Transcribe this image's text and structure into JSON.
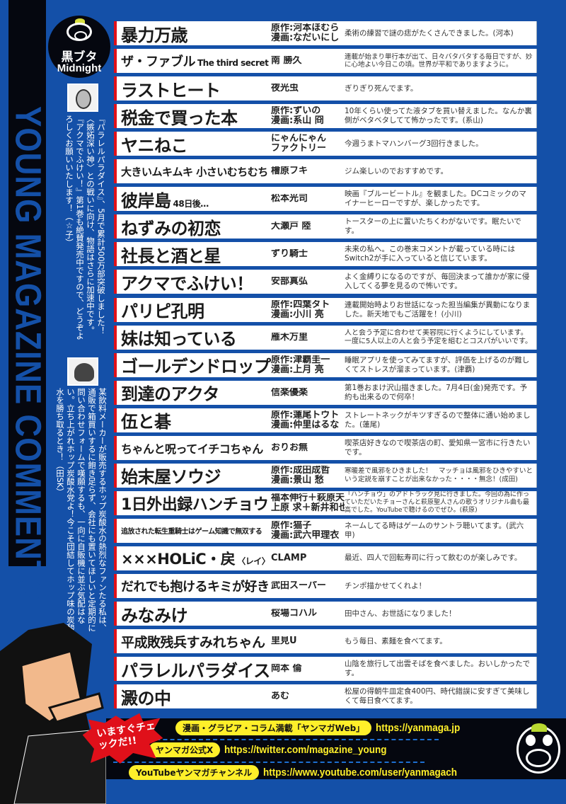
{
  "section_title": "YOUNG MAGAZINE COMMENTS",
  "logo": {
    "line1": "黒ブタ",
    "line2": "Midnight"
  },
  "editor_comments": [
    {
      "text": "『パラレルパラダイス』、5月で累計500万部突破しました！〈嫉妬深い神〉との戦いに向け、物語はさらに加速中です。『アクマでふけい！』第1巻も絶賛発売中ですので、どうぞよろしくお願いいたします！（☆子）"
    },
    {
      "text": "某飲料メーカーが販売するホップ炭酸水の熱烈なファンたる私は、通販で箱買いするに飽き足らず、会社にも置いてほしいと定期的に問い合わせフォームで嘆願するも、一向に自販機に並ぶ気配はない。立ち上がれホップ炭酸水党よ！今こそ団結してホップ味の炭酸水を勝ち取るとき！（田SK）"
    }
  ],
  "rows": [
    {
      "title": "暴力万歳",
      "sub": "",
      "author": [
        "原作:河本ほむら",
        "漫画:なだいにし"
      ],
      "comment": "柔術の練習で謎の痣がたくさんできました。(河本)"
    },
    {
      "title": "ザ・ファブル",
      "sub": "The third secret",
      "author": [
        "南 勝久"
      ],
      "comment": "連載が始まり単行本が出て、日々バタバタする毎日ですが、妙に心地よい今日この頃。世界が平和でありますように。"
    },
    {
      "title": "ラストヒート",
      "sub": "",
      "author": [
        "夜光虫"
      ],
      "comment": "ぎりぎり死んでます。"
    },
    {
      "title": "税金で買った本",
      "sub": "",
      "author": [
        "原作:ずいの",
        "漫画:系山 冏"
      ],
      "comment": "10年くらい使ってた液タブを買い替えました。なんか裏側がベタベタしてて怖かったです。(系山)"
    },
    {
      "title": "ヤニねこ",
      "sub": "",
      "author": [
        "にゃんにゃん",
        "ファクトリー"
      ],
      "comment": "今週うまトマハンバーグ3回行きました。"
    },
    {
      "title": "大きいムキムキ 小さいむちむち",
      "sub": "",
      "author": [
        "檜原フキ"
      ],
      "comment": "ジム楽しいのでおすすめです。"
    },
    {
      "title": "彼岸島",
      "sub": "48日後…",
      "author": [
        "松本光司"
      ],
      "comment": "映画『ブルービートル』を観ました。DCコミックのマイナーヒーローですが、楽しかったです。"
    },
    {
      "title": "ねずみの初恋",
      "sub": "",
      "author": [
        "大瀬戸 陸"
      ],
      "comment": "トースターの上に置いたちくわがないです。眠たいです。"
    },
    {
      "title": "社長と酒と星",
      "sub": "",
      "author": [
        "ずり騎士"
      ],
      "comment": "未来の私へ。この巻末コメントが載っている時にはSwitch2が手に入っていると信じています。"
    },
    {
      "title": "アクマでふけい！",
      "sub": "",
      "author": [
        "安部真弘"
      ],
      "comment": "よく金縛りになるのですが、毎回決まって誰かが家に侵入してくる夢を見るので怖いです。"
    },
    {
      "title": "パリピ孔明",
      "sub": "",
      "author": [
        "原作:四葉タト",
        "漫画:小川 亮"
      ],
      "comment": "連載開始時よりお世話になった担当編集が異動になりました。新天地でもご活躍を！(小川)"
    },
    {
      "title": "妹は知っている",
      "sub": "",
      "author": [
        "雁木万里"
      ],
      "comment": "人と会う予定に合わせて美容院に行くようにしています。一度に5人以上の人と会う予定を組むとコスパがいいです。"
    },
    {
      "title": "ゴールデンドロップ",
      "sub": "",
      "author": [
        "原作:津覇圭一",
        "漫画:上月 亮"
      ],
      "comment": "睡眠アプリを使ってみてますが、評価を上げるのが難しくてストレスが溜まっています。(津覇)"
    },
    {
      "title": "到達のアクタ",
      "sub": "",
      "author": [
        "信楽優楽"
      ],
      "comment": "第1巻おまけ沢山描きました。7月4日(金)発売です。予約も出来るので何卒！"
    },
    {
      "title": "伍と碁",
      "sub": "",
      "author": [
        "原作:蓮尾トウト",
        "漫画:仲里はるな"
      ],
      "comment": "ストレートネックがキツすぎるので整体に通い始めました。(蓮尾)"
    },
    {
      "title": "ちゃんと呪ってイチコちゃん",
      "sub": "",
      "author": [
        "おりお無"
      ],
      "comment": "喫茶店好きなので喫茶店の町、愛知県一宮市に行きたいです。"
    },
    {
      "title": "始末屋ソウジ",
      "sub": "",
      "author": [
        "原作:成田成哲",
        "漫画:景山 愁"
      ],
      "comment": "寒暖差で風邪をひきました！　マッチョは風邪をひきやすいという定説を崩すことが出来なかった・・・・無念！(成田)"
    },
    {
      "title": "1日外出録ハンチョウ",
      "sub": "",
      "author": [
        "福本伸行＋萩原天晴＋",
        "上原 求＋新井和也"
      ],
      "comment": "「ハンチョウ」のアドトラック見に行きました。今回の為に作っていただいたチョーさんと萩原聖人さんの歌うオリジナル曲も最高でした。YouTubeで聴けるのでぜひ。(萩原)"
    },
    {
      "title": "追放された転生重騎士はゲーム知識で無双する",
      "sub": "",
      "author": [
        "原作:猫子",
        "漫画:武六甲理衣"
      ],
      "comment": "ネームしてる時はゲームのサントラ聴いてます。(武六甲)"
    },
    {
      "title": "×××HOLiC・戻",
      "sub": "〈レイ〉",
      "author": [
        "CLAMP"
      ],
      "comment": "最近、四人で回転寿司に行って飲むのが楽しみです。"
    },
    {
      "title": "だれでも抱けるキミが好き",
      "sub": "",
      "author": [
        "武田スーパー"
      ],
      "comment": "チンポ描かせてくれよ！"
    },
    {
      "title": "みなみけ",
      "sub": "",
      "author": [
        "桜場コハル"
      ],
      "comment": "田中さん、お世話になりました！"
    },
    {
      "title": "平成敗残兵すみれちゃん",
      "sub": "",
      "author": [
        "里見U"
      ],
      "comment": "もう毎日、素麺を食べてます。"
    },
    {
      "title": "パラレルパラダイス",
      "sub": "",
      "author": [
        "岡本 倫"
      ],
      "comment": "山陰を旅行して出雲そばを食べました。おいしかったです。"
    },
    {
      "title": "澱の中",
      "sub": "",
      "author": [
        "あむ"
      ],
      "comment": "松屋の得朝牛皿定食400円、時代錯誤に安すぎて美味しくて毎日食べてます。"
    }
  ],
  "promo": {
    "burst": "いますぐチェックだ!!",
    "links": [
      {
        "label": "漫画・グラビア・コラム満載「ヤンマガWeb」",
        "url": "https://yanmaga.jp"
      },
      {
        "label": "ヤンマガ公式X",
        "url": "https://twitter.com/magazine_young"
      },
      {
        "label": "YouTubeヤンマガチャンネル",
        "url": "https://www.youtube.com/user/yanmagach"
      }
    ]
  },
  "colors": {
    "background": "#1450a8",
    "stripe": "#05070f",
    "accent_red": "#e0101a",
    "pill_yellow": "#ffef2a"
  }
}
